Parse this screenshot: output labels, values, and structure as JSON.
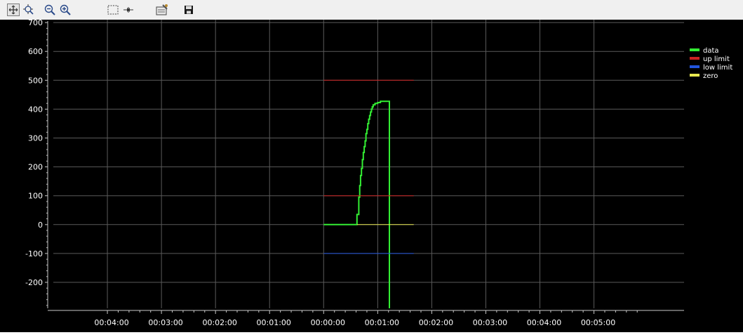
{
  "toolbar": {
    "buttons": [
      {
        "name": "pan-icon",
        "active": true
      },
      {
        "name": "zoom-area-icon",
        "active": false
      },
      {
        "name": "zoom-out-icon",
        "active": false
      },
      {
        "name": "zoom-in-icon",
        "active": false
      },
      {
        "name": "select-rectangle-icon",
        "active": false
      },
      {
        "name": "fit-icon",
        "active": false
      },
      {
        "name": "properties-icon",
        "active": false
      },
      {
        "name": "save-icon",
        "active": false
      }
    ]
  },
  "colors": {
    "background": "#000000",
    "grid": "#5a5a5a",
    "axis": "#c8c8c8",
    "data": "#33ee33",
    "up_limit": "#cc2222",
    "low_limit": "#2255dd",
    "zero": "#e8e850"
  },
  "chart_data": {
    "type": "line",
    "title": "",
    "xlabel": "",
    "ylabel": "",
    "ylim": [
      -290,
      710
    ],
    "yticks": [
      700,
      600,
      500,
      400,
      300,
      200,
      100,
      0,
      -100,
      -200
    ],
    "ytick_labels": [
      "700",
      "600",
      "500",
      "400",
      "300",
      "200",
      "100",
      "0",
      "-100",
      "-200"
    ],
    "xlim": [
      -300,
      400
    ],
    "xticks": [
      -240,
      -180,
      -120,
      -60,
      0,
      60,
      120,
      180,
      240,
      300
    ],
    "xtick_labels": [
      "00:04:00",
      "00:03:00",
      "00:02:00",
      "00:01:00",
      "00:00:00",
      "00:01:00",
      "00:02:00",
      "00:03:00",
      "00:04:00",
      "00:05:00"
    ],
    "grid": true,
    "legend_position": "top-right",
    "series": [
      {
        "name": "data",
        "color": "#33ee33",
        "x": [
          0,
          37,
          37,
          39,
          39,
          40,
          40,
          41,
          41,
          42,
          42,
          43,
          43,
          44,
          44,
          45,
          45,
          46,
          46,
          47,
          47,
          48,
          48,
          49,
          49,
          50,
          50,
          51,
          51,
          52,
          52,
          53,
          53,
          54,
          54,
          55,
          55,
          57,
          57,
          60,
          60,
          63,
          63,
          73,
          73
        ],
        "y": [
          0,
          0,
          35,
          35,
          95,
          95,
          135,
          135,
          170,
          170,
          195,
          195,
          225,
          225,
          250,
          250,
          270,
          270,
          290,
          290,
          315,
          315,
          330,
          330,
          350,
          350,
          365,
          365,
          378,
          378,
          390,
          390,
          400,
          400,
          408,
          408,
          415,
          415,
          420,
          420,
          423,
          423,
          427,
          427,
          -290
        ]
      },
      {
        "name": "up limit",
        "color": "#cc2222",
        "segments": [
          {
            "x": [
              0,
              100
            ],
            "y": [
              500,
              500
            ]
          },
          {
            "x": [
              0,
              100
            ],
            "y": [
              100,
              100
            ]
          }
        ]
      },
      {
        "name": "low limit",
        "color": "#2255dd",
        "segments": [
          {
            "x": [
              0,
              100
            ],
            "y": [
              -100,
              -100
            ]
          }
        ]
      },
      {
        "name": "zero",
        "color": "#e8e850",
        "segments": [
          {
            "x": [
              37,
              100
            ],
            "y": [
              0,
              0
            ]
          }
        ]
      }
    ]
  }
}
